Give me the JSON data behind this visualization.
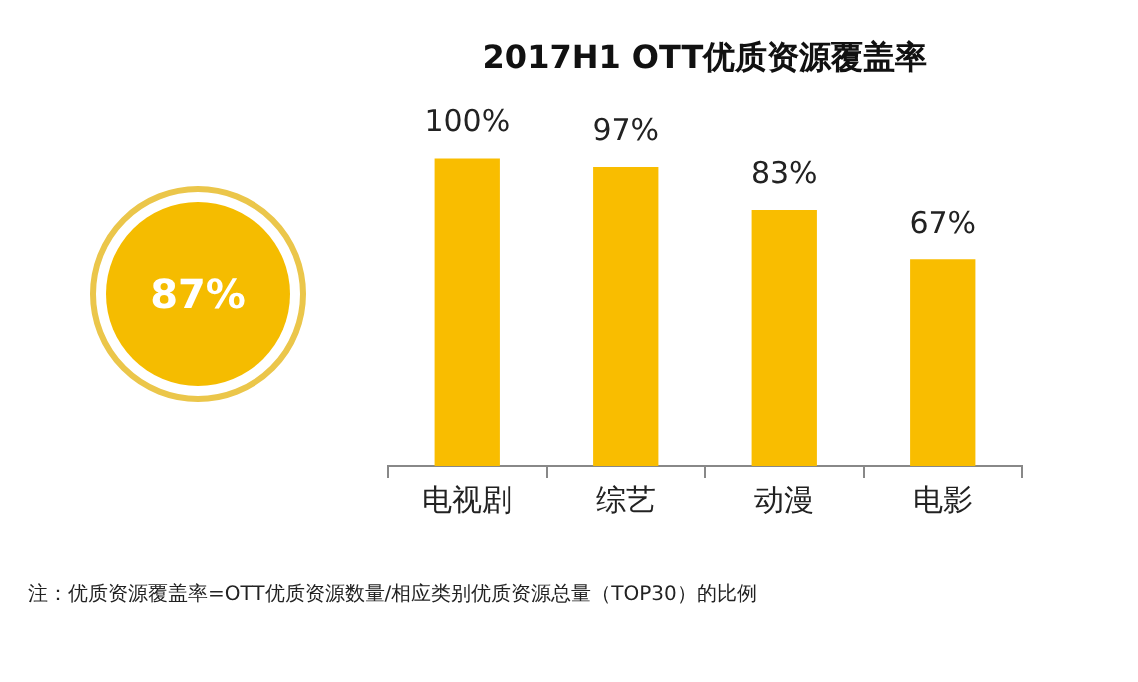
{
  "chart_data": {
    "type": "bar",
    "title": "2017H1 OTT优质资源覆盖率",
    "categories": [
      "电视剧",
      "综艺",
      "动漫",
      "电影"
    ],
    "values": [
      100,
      97,
      83,
      67
    ],
    "color": "#f9bd00",
    "value_labels": [
      "100%",
      "97%",
      "83%",
      "67%"
    ],
    "tick_labels": "x",
    "grid": false,
    "legend": false,
    "annotations": [
      "87%",
      "注：优质资源覆盖率=OTT优质资源数量/相应类别优质资源总量（TOP30）的比例"
    ]
  }
}
